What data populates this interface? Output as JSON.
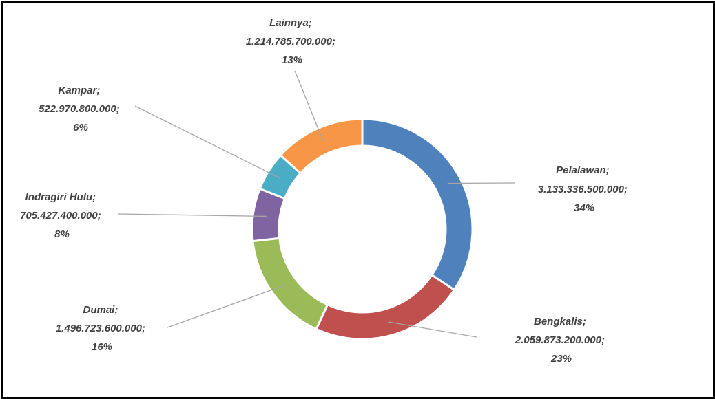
{
  "chart_data": {
    "type": "pie",
    "variant": "doughnut",
    "title": "",
    "legend": "none",
    "slices": [
      {
        "name": "Pelalawan",
        "value": 3133336500000,
        "value_label": "3.133.336.500.000",
        "percent": "34%",
        "color": "#4F81BD",
        "label_lines": [
          "Pelalawan;",
          "3.133.336.500.000;",
          "34%"
        ]
      },
      {
        "name": "Bengkalis",
        "value": 2059873200000,
        "value_label": "2.059.873.200.000",
        "percent": "23%",
        "color": "#C0504D",
        "label_lines": [
          "Bengkalis;",
          "2.059.873.200.000;",
          "23%"
        ]
      },
      {
        "name": "Dumai",
        "value": 1496723600000,
        "value_label": "1.496.723.600.000",
        "percent": "16%",
        "color": "#9BBB59",
        "label_lines": [
          "Dumai;",
          "1.496.723.600.000;",
          "16%"
        ]
      },
      {
        "name": "Indragiri Hulu",
        "value": 705427400000,
        "value_label": "705.427.400.000",
        "percent": "8%",
        "color": "#8064A2",
        "label_lines": [
          "Indragiri Hulu;",
          "705.427.400.000;",
          "8%"
        ]
      },
      {
        "name": "Kampar",
        "value": 522970800000,
        "value_label": "522.970.800.000",
        "percent": "6%",
        "color": "#4BACC6",
        "label_lines": [
          "Kampar;",
          "522.970.800.000;",
          "6%"
        ]
      },
      {
        "name": "Lainnya",
        "value": 1214785700000,
        "value_label": "1.214.785.700.000",
        "percent": "13%",
        "color": "#F79646",
        "label_lines": [
          "Lainnya;",
          "1.214.785.700.000;",
          "13%"
        ]
      }
    ]
  }
}
